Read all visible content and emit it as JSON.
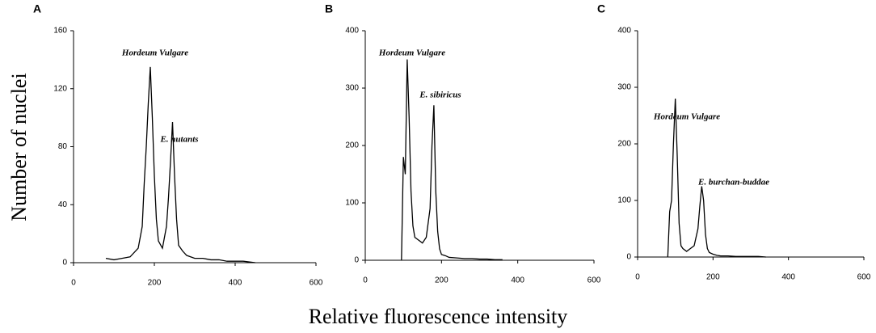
{
  "ylabel": "Number of nuclei",
  "xlabel": "Relative fluorescence intensity",
  "chart_data": [
    {
      "type": "line",
      "panel": "A",
      "color": "#000000",
      "annotations": [
        "Hordeum Vulgare",
        "E. nutants"
      ],
      "x": [
        80,
        100,
        120,
        140,
        160,
        170,
        175,
        180,
        185,
        190,
        195,
        200,
        205,
        210,
        220,
        230,
        235,
        240,
        245,
        250,
        255,
        260,
        270,
        280,
        300,
        320,
        340,
        360,
        380,
        400,
        420,
        450
      ],
      "values": [
        3,
        2,
        3,
        4,
        10,
        25,
        55,
        80,
        110,
        135,
        100,
        60,
        30,
        15,
        10,
        25,
        45,
        70,
        97,
        60,
        30,
        12,
        8,
        5,
        3,
        3,
        2,
        2,
        1,
        1,
        1,
        0
      ],
      "xlim": [
        0,
        600
      ],
      "xticks": [
        0,
        200,
        400,
        600
      ],
      "ylim": [
        0,
        160
      ],
      "yticks": [
        0,
        40,
        80,
        120,
        160
      ]
    },
    {
      "type": "line",
      "panel": "B",
      "color": "#000000",
      "annotations": [
        "Hordeum Vulgare",
        "E. sibiricus"
      ],
      "x": [
        95,
        100,
        105,
        110,
        115,
        120,
        125,
        130,
        140,
        150,
        160,
        170,
        175,
        180,
        185,
        190,
        195,
        200,
        210,
        220,
        240,
        260,
        280,
        300,
        320,
        340,
        360
      ],
      "values": [
        0,
        180,
        150,
        350,
        250,
        120,
        60,
        40,
        35,
        30,
        40,
        90,
        200,
        270,
        120,
        50,
        20,
        10,
        8,
        5,
        4,
        3,
        3,
        2,
        2,
        1,
        1
      ],
      "xlim": [
        0,
        600
      ],
      "xticks": [
        0,
        200,
        400,
        600
      ],
      "ylim": [
        0,
        400
      ],
      "yticks": [
        0,
        100,
        200,
        300,
        400
      ]
    },
    {
      "type": "line",
      "panel": "C",
      "color": "#000000",
      "annotations": [
        "Hordeum Vulgare",
        "E. burchan-buddae"
      ],
      "x": [
        80,
        85,
        90,
        95,
        100,
        105,
        110,
        115,
        120,
        130,
        140,
        150,
        160,
        165,
        170,
        175,
        180,
        185,
        190,
        200,
        210,
        220,
        240,
        260,
        280,
        300,
        320,
        340
      ],
      "values": [
        0,
        80,
        100,
        200,
        280,
        180,
        60,
        20,
        15,
        10,
        15,
        20,
        50,
        90,
        125,
        100,
        40,
        15,
        8,
        5,
        3,
        2,
        2,
        1,
        1,
        1,
        1,
        0
      ],
      "xlim": [
        0,
        600
      ],
      "xticks": [
        0,
        200,
        400,
        600
      ],
      "ylim": [
        0,
        400
      ],
      "yticks": [
        0,
        100,
        200,
        300,
        400
      ]
    }
  ]
}
